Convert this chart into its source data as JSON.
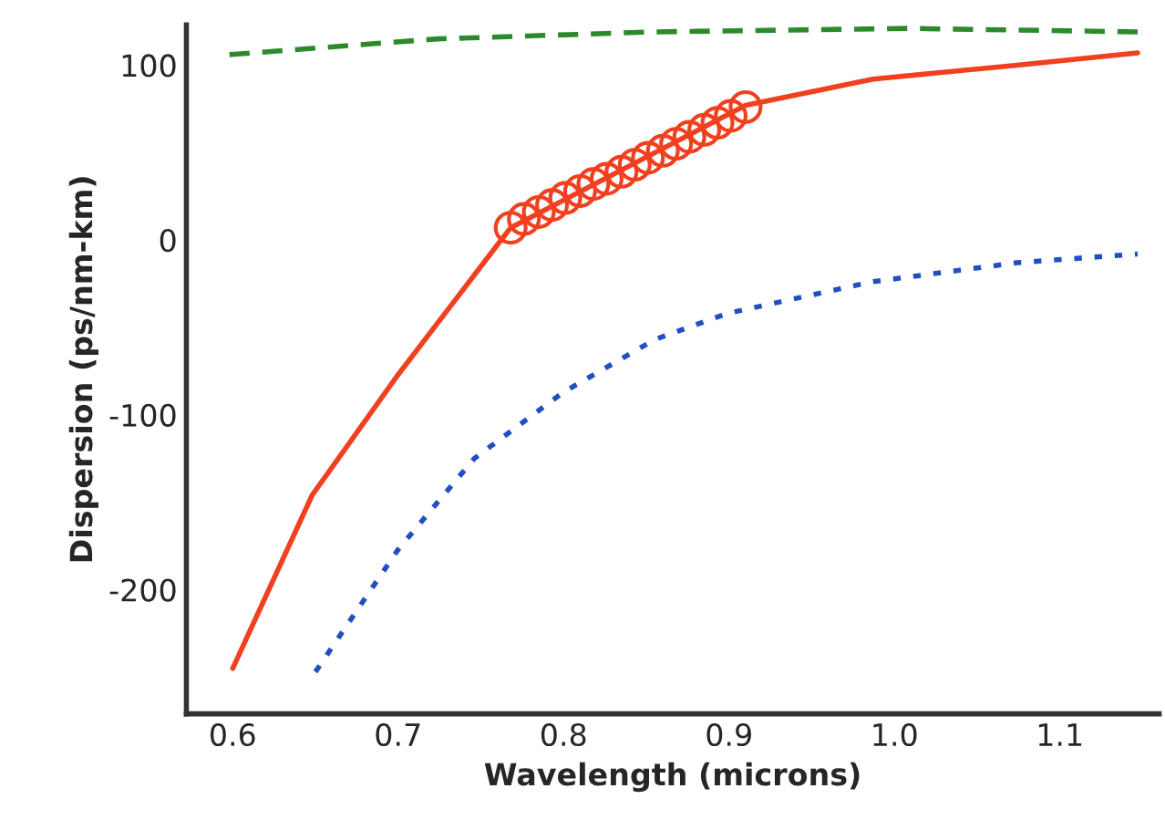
{
  "chart_data": {
    "type": "line",
    "xlabel": "Wavelength (microns)",
    "ylabel": "Dispersion (ps/nm-km)",
    "xlim": [
      0.572,
      1.16
    ],
    "ylim": [
      -271,
      123
    ],
    "xticks": [
      {
        "value": 0.6,
        "label": "0.6"
      },
      {
        "value": 0.7,
        "label": "0.7"
      },
      {
        "value": 0.8,
        "label": "0.8"
      },
      {
        "value": 0.9,
        "label": "0.9"
      },
      {
        "value": 1.0,
        "label": "1.0"
      },
      {
        "value": 1.1,
        "label": "1.1"
      }
    ],
    "yticks": [
      {
        "value": -200,
        "label": "-200"
      },
      {
        "value": -100,
        "label": "-100"
      },
      0,
      100
    ],
    "grid": false,
    "series": [
      {
        "color": "#2c8a2c",
        "line_style": "dashed",
        "x": [
          0.598,
          0.724,
          0.855,
          1.008,
          1.147
        ],
        "values": [
          106,
          115,
          119,
          121,
          119
        ]
      },
      {
        "color": "#f04020",
        "line_style": "solid",
        "x": [
          0.6,
          0.648,
          0.7,
          0.759,
          0.768,
          0.91,
          0.987,
          1.074,
          1.147
        ],
        "values": [
          -245,
          -146,
          -77,
          -4,
          7,
          77,
          92,
          100,
          107
        ]
      },
      {
        "color": "#2050c0",
        "line_style": "dotted",
        "x": [
          0.65,
          0.7,
          0.746,
          0.8,
          0.855,
          0.899,
          0.986,
          1.074,
          1.147
        ],
        "values": [
          -247,
          -177,
          -125,
          -87,
          -57,
          -42,
          -24,
          -13,
          -8
        ]
      },
      {
        "type": "scatter",
        "color": "#f04020",
        "marker": "circle",
        "x": [
          0.768,
          0.776,
          0.785,
          0.793,
          0.801,
          0.81,
          0.818,
          0.826,
          0.835,
          0.843,
          0.851,
          0.86,
          0.868,
          0.876,
          0.885,
          0.893,
          0.901,
          0.91
        ],
        "values": [
          7,
          12,
          16,
          20,
          24,
          28,
          32,
          35,
          39,
          43,
          47,
          51,
          55,
          59,
          63,
          67,
          71,
          76
        ]
      }
    ]
  }
}
